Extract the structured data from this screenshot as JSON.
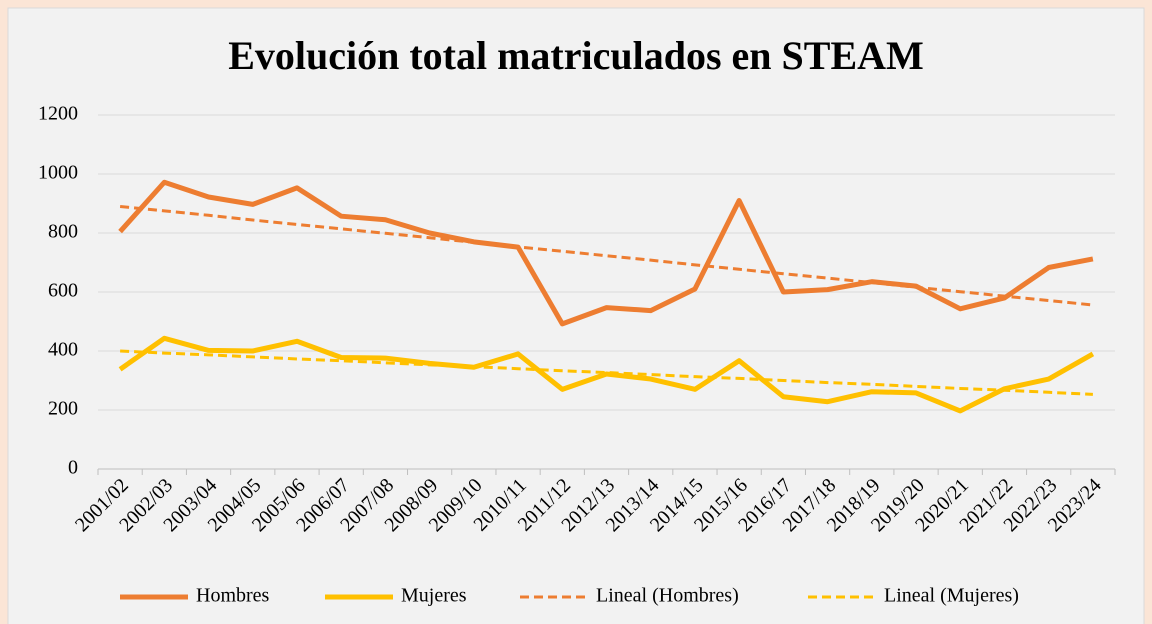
{
  "chart_data": {
    "type": "line",
    "title": "Evolución total matriculados en STEAM",
    "categories": [
      "2001/02",
      "2002/03",
      "2003/04",
      "2004/05",
      "2005/06",
      "2006/07",
      "2007/08",
      "2008/09",
      "2009/10",
      "2010/11",
      "2011/12",
      "2012/13",
      "2013/14",
      "2014/15",
      "2015/16",
      "2016/17",
      "2017/18",
      "2018/19",
      "2019/20",
      "2020/21",
      "2021/22",
      "2022/23",
      "2023/24"
    ],
    "series": [
      {
        "name": "Hombres",
        "color": "#ed7d31",
        "dashed": false,
        "values": [
          805,
          972,
          922,
          897,
          953,
          857,
          845,
          800,
          770,
          752,
          492,
          547,
          537,
          610,
          910,
          600,
          608,
          635,
          620,
          543,
          580,
          683,
          712
        ]
      },
      {
        "name": "Mujeres",
        "color": "#ffc000",
        "dashed": false,
        "values": [
          338,
          443,
          402,
          400,
          433,
          378,
          376,
          358,
          345,
          390,
          270,
          322,
          305,
          270,
          367,
          245,
          228,
          262,
          258,
          197,
          272,
          305,
          390
        ]
      },
      {
        "name": "Lineal (Hombres)",
        "color": "#ed7d31",
        "dashed": true,
        "values": [
          890,
          875,
          860,
          844,
          829,
          814,
          799,
          784,
          768,
          753,
          738,
          723,
          708,
          692,
          677,
          662,
          647,
          632,
          616,
          601,
          586,
          571,
          556
        ]
      },
      {
        "name": "Lineal (Mujeres)",
        "color": "#ffc000",
        "dashed": true,
        "values": [
          400,
          393,
          387,
          380,
          373,
          367,
          360,
          353,
          347,
          340,
          333,
          327,
          320,
          313,
          307,
          300,
          293,
          287,
          280,
          273,
          267,
          260,
          253
        ]
      }
    ],
    "ylim": [
      0,
      1200
    ],
    "yticks": [
      0,
      200,
      400,
      600,
      800,
      1000,
      1200
    ],
    "grid": true,
    "legend": "bottom"
  }
}
